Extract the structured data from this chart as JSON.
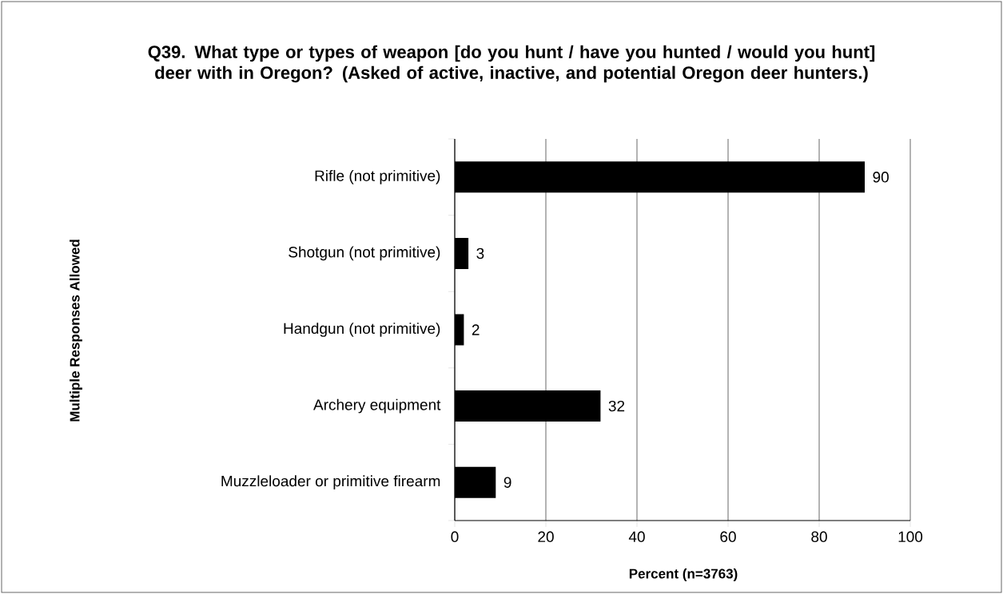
{
  "chart_data": {
    "type": "bar",
    "orientation": "horizontal",
    "title": "Q39. What type or types of weapon [do you hunt / have you hunted / would you hunt] deer with in Oregon? (Asked of active, inactive, and potential Oregon deer hunters.)",
    "xlabel": "Percent (n=3763)",
    "annotations": [
      "Multiple Responses Allowed"
    ],
    "categories": [
      "Rifle (not primitive)",
      "Shotgun (not primitive)",
      "Handgun (not primitive)",
      "Archery equipment",
      "Muzzleloader or primitive firearm"
    ],
    "values": [
      90,
      3,
      2,
      32,
      9
    ],
    "color": "#000000",
    "data_labels": true,
    "xlim": [
      0,
      100
    ],
    "xticks": [
      0,
      20,
      40,
      60,
      80,
      100
    ],
    "grid": "x"
  }
}
